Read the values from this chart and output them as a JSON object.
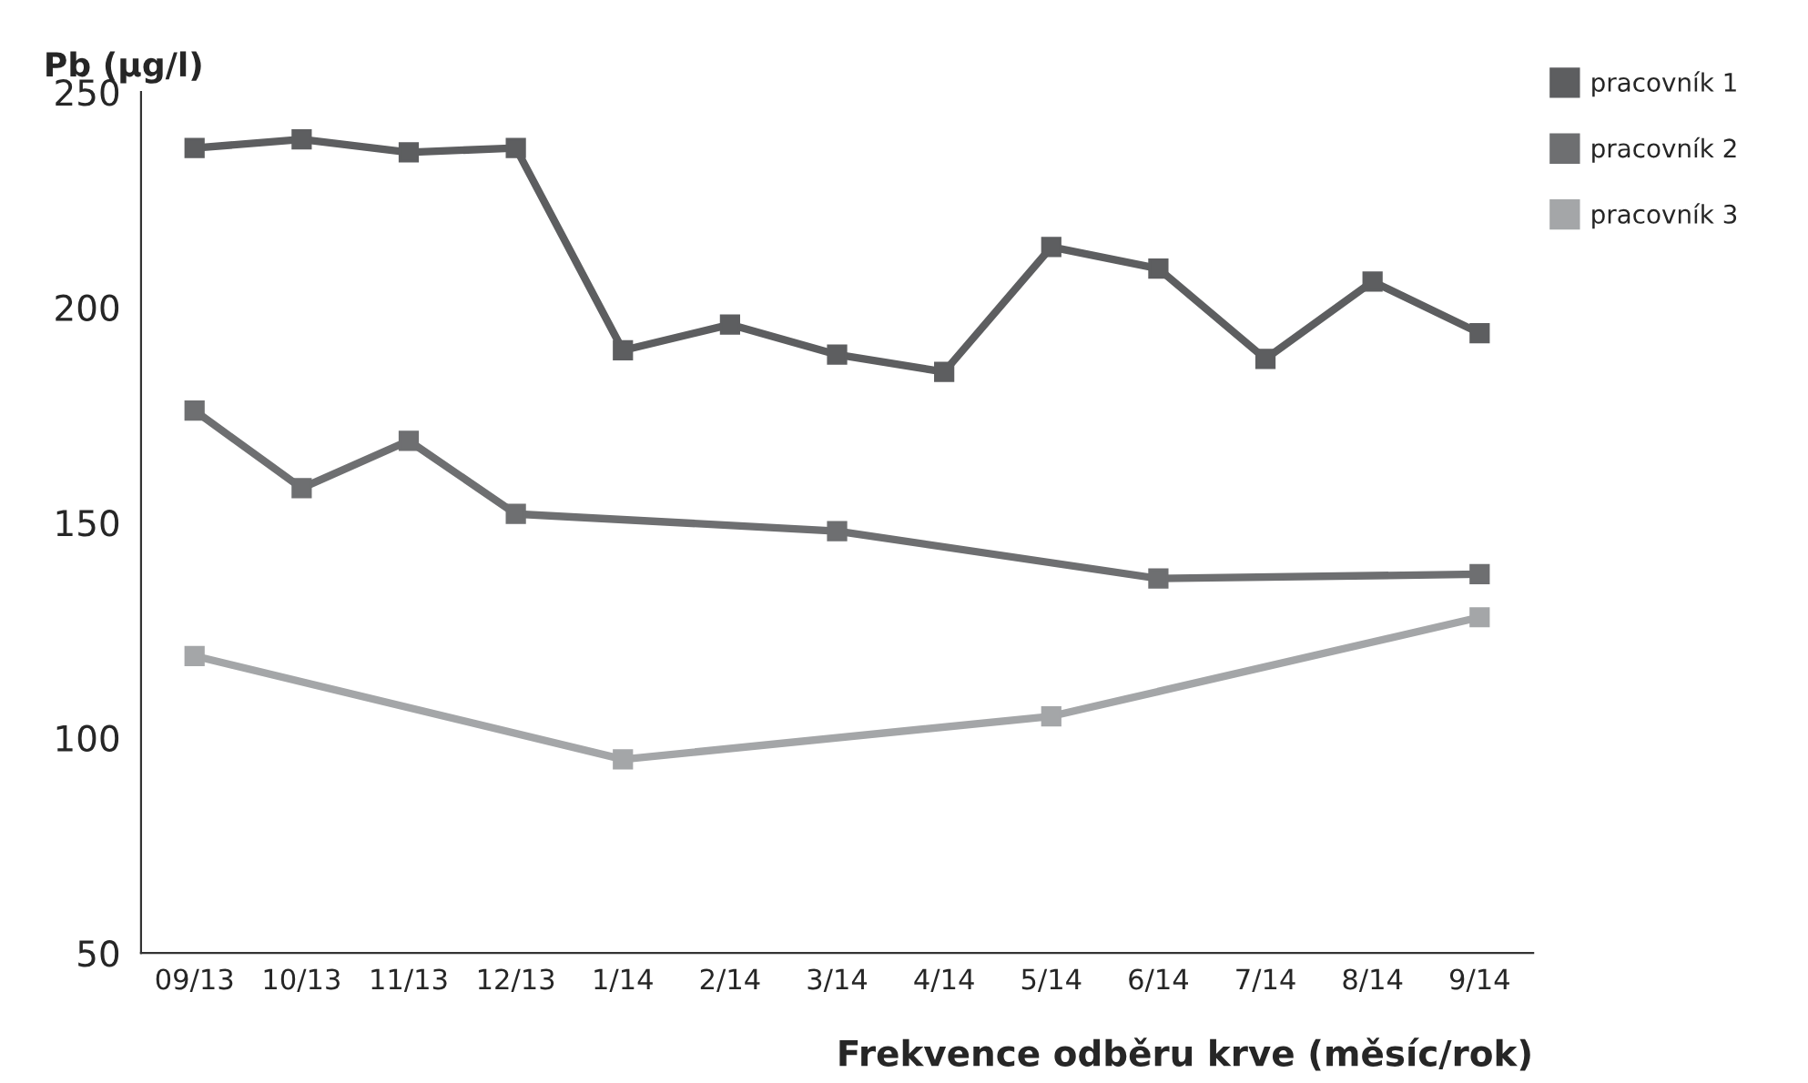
{
  "chart_data": {
    "type": "line",
    "ylabel": "Pb (µg/l)",
    "xlabel": "Frekvence odběru krve (měsíc/rok)",
    "categories": [
      "09/13",
      "10/13",
      "11/13",
      "12/13",
      "1/14",
      "2/14",
      "3/14",
      "4/14",
      "5/14",
      "6/14",
      "7/14",
      "8/14",
      "9/14"
    ],
    "series": [
      {
        "name": "pracovník 1",
        "color": "#5d5e60",
        "values": [
          237,
          239,
          236,
          237,
          190,
          196,
          189,
          185,
          214,
          209,
          188,
          206,
          194
        ]
      },
      {
        "name": "pracovník 2",
        "color": "#6e6f71",
        "values": [
          176,
          158,
          169,
          152,
          null,
          null,
          148,
          null,
          null,
          137,
          null,
          null,
          138
        ]
      },
      {
        "name": "pracovník 3",
        "color": "#a4a6a8",
        "values": [
          119,
          null,
          null,
          null,
          95,
          null,
          null,
          null,
          105,
          null,
          null,
          null,
          128
        ]
      }
    ],
    "ylim": [
      50,
      250
    ],
    "yticks": [
      50,
      100,
      150,
      200,
      250
    ],
    "grid": false,
    "legend": "top right",
    "marker": "square",
    "line_style": "solid"
  }
}
